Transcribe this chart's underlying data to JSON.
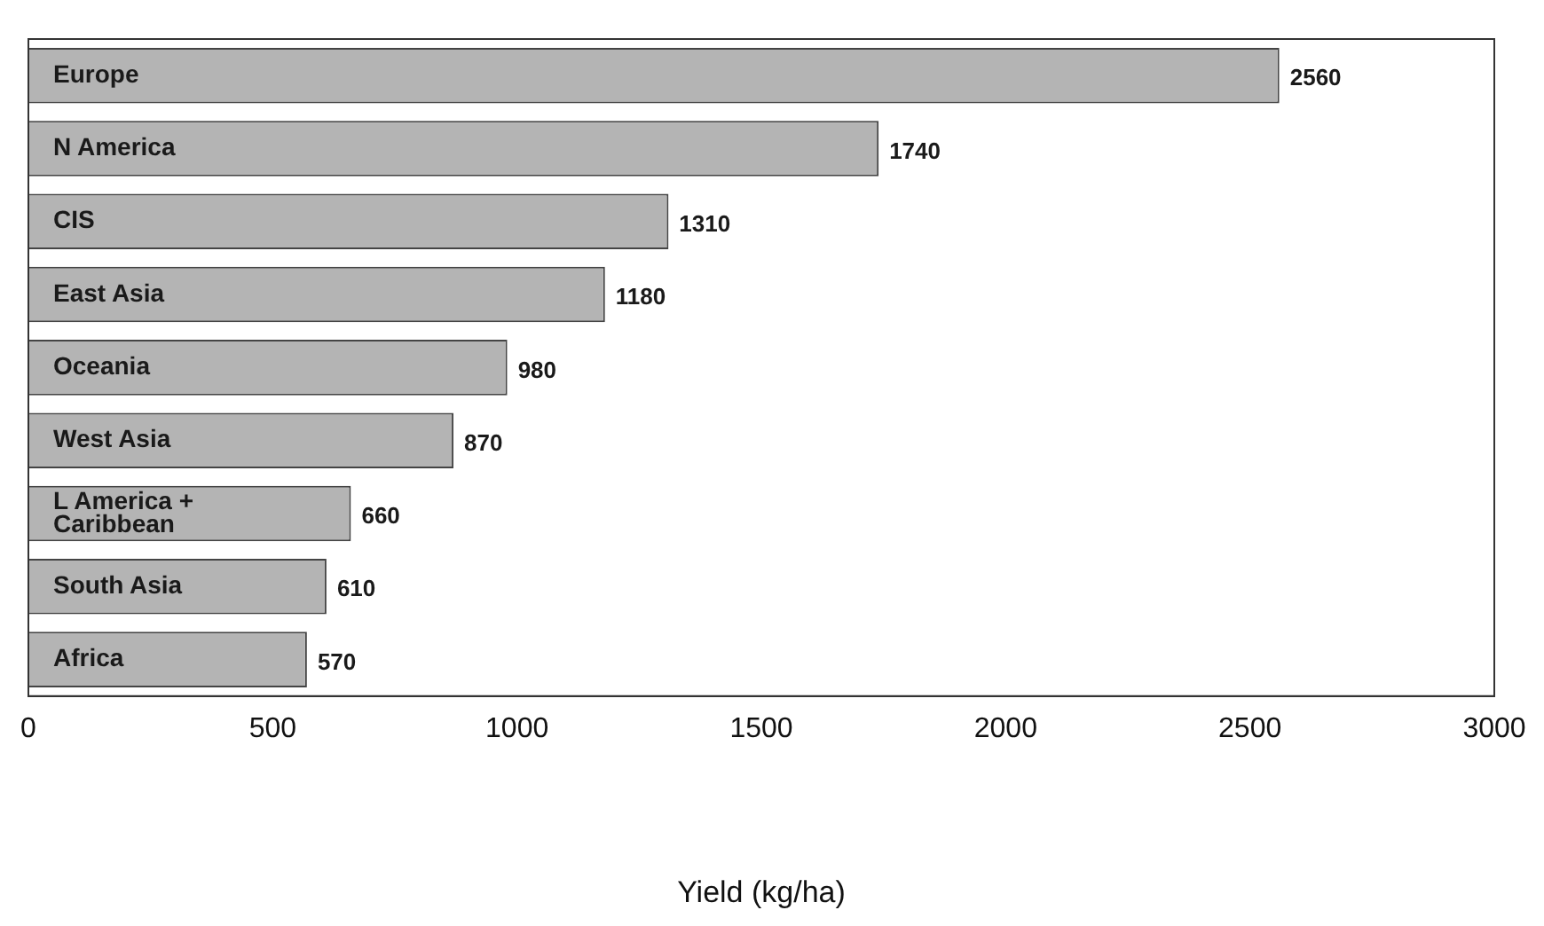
{
  "chart_data": {
    "type": "bar",
    "orientation": "horizontal",
    "xlabel": "Yield (kg/ha)",
    "categories": [
      "Europe",
      "N America",
      "CIS",
      "East Asia",
      "Oceania",
      "West Asia",
      "L America + Caribbean",
      "South Asia",
      "Africa"
    ],
    "values": [
      2560,
      1740,
      1310,
      1180,
      980,
      870,
      660,
      610,
      570
    ],
    "color": "#b4b4b4",
    "xlim": [
      0,
      3000
    ],
    "xticks": [
      0,
      500,
      1000,
      1500,
      2000,
      2500,
      3000
    ],
    "data_labels": true,
    "grid": false,
    "legend": false
  }
}
